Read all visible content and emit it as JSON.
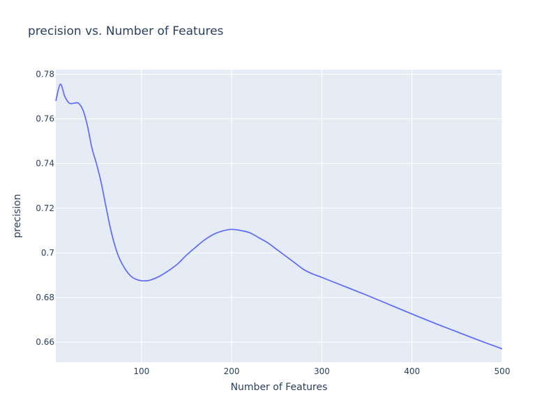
{
  "chart_data": {
    "type": "line",
    "title": "precision vs. Number of Features",
    "xlabel": "Number of Features",
    "ylabel": "precision",
    "xlim": [
      5,
      500
    ],
    "ylim": [
      0.651,
      0.782
    ],
    "x_ticks": [
      100,
      200,
      300,
      400,
      500
    ],
    "x_tick_labels": [
      "100",
      "200",
      "300",
      "400",
      "500"
    ],
    "y_ticks": [
      0.66,
      0.68,
      0.7,
      0.72,
      0.74,
      0.76,
      0.78
    ],
    "y_tick_labels": [
      "0.66",
      "0.68",
      "0.7",
      "0.72",
      "0.74",
      "0.76",
      "0.78"
    ],
    "grid": true,
    "colors": {
      "line": "#636efa",
      "plot_bg": "#e5ecf6",
      "grid": "#ffffff",
      "text": "#2a3f5f"
    },
    "series": [
      {
        "x": [
          5,
          10,
          15,
          20,
          25,
          30,
          35,
          40,
          45,
          50,
          55,
          60,
          65,
          70,
          75,
          80,
          85,
          90,
          95,
          100,
          105,
          110,
          120,
          130,
          140,
          150,
          160,
          170,
          180,
          190,
          200,
          210,
          220,
          230,
          240,
          250,
          260,
          270,
          280,
          290,
          300,
          325,
          350,
          375,
          400,
          425,
          450,
          475,
          500
        ],
        "values": [
          0.768,
          0.7755,
          0.77,
          0.767,
          0.767,
          0.767,
          0.764,
          0.757,
          0.747,
          0.74,
          0.732,
          0.722,
          0.712,
          0.704,
          0.698,
          0.694,
          0.691,
          0.689,
          0.688,
          0.6875,
          0.6875,
          0.6878,
          0.6895,
          0.692,
          0.695,
          0.699,
          0.7025,
          0.7058,
          0.7083,
          0.7098,
          0.7105,
          0.71,
          0.709,
          0.7068,
          0.7045,
          0.7015,
          0.6985,
          0.6955,
          0.6925,
          0.6905,
          0.689,
          0.685,
          0.681,
          0.6768,
          0.6726,
          0.6685,
          0.6646,
          0.6607,
          0.657
        ]
      }
    ]
  }
}
